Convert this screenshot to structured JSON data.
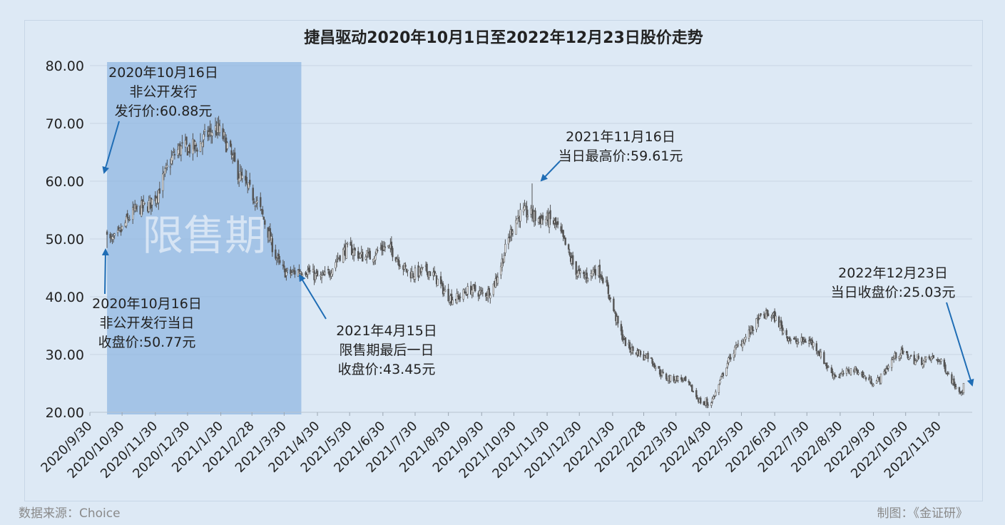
{
  "chart_data": {
    "type": "candlestick",
    "title": "捷昌驱动2020年10月1日至2022年12月23日股价走势",
    "xlabel": "",
    "ylabel": "",
    "ylim": [
      20,
      80
    ],
    "yticks": [
      "80.00",
      "70.00",
      "60.00",
      "50.00",
      "40.00",
      "30.00",
      "20.00"
    ],
    "xticks": [
      "2020/9/30",
      "2020/10/30",
      "2020/11/30",
      "2020/12/30",
      "2021/1/30",
      "2021/2/28",
      "2021/3/30",
      "2021/4/30",
      "2021/5/30",
      "2021/6/30",
      "2021/7/30",
      "2021/8/30",
      "2021/9/30",
      "2021/10/30",
      "2021/11/30",
      "2021/12/30",
      "2022/1/30",
      "2022/2/28",
      "2022/3/30",
      "2022/4/30",
      "2022/5/30",
      "2022/6/30",
      "2022/7/30",
      "2022/8/30",
      "2022/9/30",
      "2022/10/30",
      "2022/11/30"
    ],
    "grid": true,
    "lockup_label": "限售期",
    "lockup_range": [
      "2020/10/16",
      "2021/4/15"
    ],
    "anchors": [
      {
        "date": "2020/10/16",
        "close": 50.77
      },
      {
        "date": "2021/1/20",
        "close": 68.0
      },
      {
        "date": "2021/4/15",
        "close": 43.45
      },
      {
        "date": "2021/6/15",
        "close": 48.0
      },
      {
        "date": "2021/9/25",
        "close": 40.0
      },
      {
        "date": "2021/11/16",
        "close": 55.0,
        "high": 59.61
      },
      {
        "date": "2022/1/10",
        "close": 44.0
      },
      {
        "date": "2022/2/28",
        "close": 29.0
      },
      {
        "date": "2022/4/27",
        "close": 22.5
      },
      {
        "date": "2022/6/15",
        "close": 36.0
      },
      {
        "date": "2022/9/20",
        "close": 26.0
      },
      {
        "date": "2022/11/10",
        "close": 30.0
      },
      {
        "date": "2022/12/23",
        "close": 25.03
      }
    ],
    "annotations": [
      {
        "lines": [
          "2020年10月16日",
          "非公开发行",
          "发行价:60.88元"
        ]
      },
      {
        "lines": [
          "2020年10月16日",
          "非公开发行当日",
          "收盘价:50.77元"
        ]
      },
      {
        "lines": [
          "2021年4月15日",
          "限售期最后一日",
          "收盘价:43.45元"
        ]
      },
      {
        "lines": [
          "2021年11月16日",
          "当日最高价:59.61元"
        ]
      },
      {
        "lines": [
          "2022年12月23日",
          "当日收盘价:25.03元"
        ]
      }
    ]
  },
  "footer": {
    "source": "数据来源：Choice",
    "credit": "制图：《金证研》"
  },
  "colors": {
    "background": "#dde9f5",
    "shade": "#8db6e2",
    "candle": "#555555",
    "arrow": "#1f6db5",
    "grid": "#c9d5e2"
  }
}
